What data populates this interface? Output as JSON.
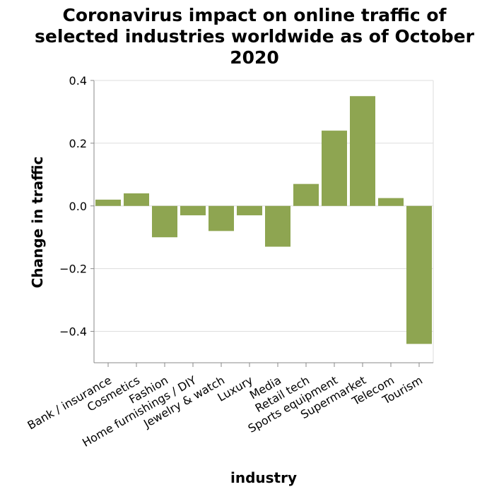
{
  "chart_data": {
    "type": "bar",
    "title": [
      "Coronavirus impact on online traffic of",
      "selected industries worldwide as of October",
      "2020"
    ],
    "xlabel": "industry",
    "ylabel": "Change in traffic",
    "categories": [
      "Bank / insurance",
      "Cosmetics",
      "Fashion",
      "Home furnishings / DIY",
      "Jewelry & watch",
      "Luxury",
      "Media",
      "Retail tech",
      "Sports equipment",
      "Supermarket",
      "Telecom",
      "Tourism"
    ],
    "values": [
      0.02,
      0.04,
      -0.1,
      -0.03,
      -0.08,
      -0.03,
      -0.13,
      0.07,
      0.24,
      0.35,
      0.025,
      -0.44
    ],
    "ylim": [
      -0.5,
      0.4
    ],
    "yticks": [
      0.4,
      0.2,
      0.0,
      -0.2,
      -0.4
    ],
    "ytick_labels": [
      "0.4",
      "0.2",
      "0.0",
      "−0.2",
      "−0.4"
    ],
    "grid": true,
    "bar_color": "#8ea551"
  }
}
